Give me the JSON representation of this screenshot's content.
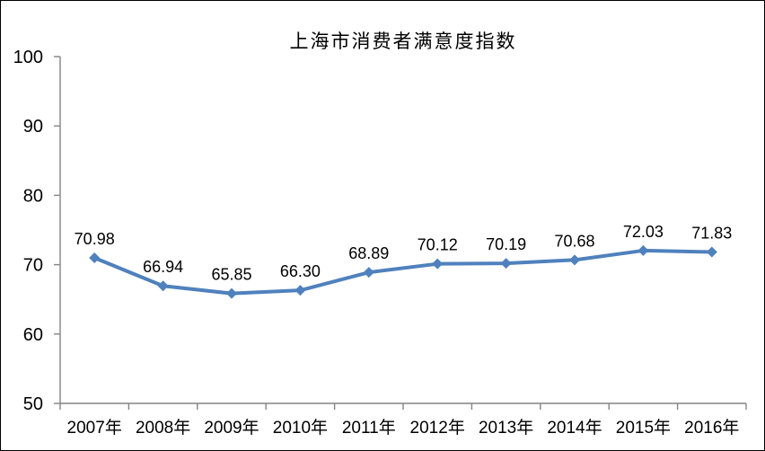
{
  "chart_data": {
    "type": "line",
    "title": "上海市消费者满意度指数",
    "categories": [
      "2007年",
      "2008年",
      "2009年",
      "2010年",
      "2011年",
      "2012年",
      "2013年",
      "2014年",
      "2015年",
      "2016年"
    ],
    "series": [
      {
        "name": "上海市消费者满意度指数",
        "values": [
          70.98,
          66.94,
          65.85,
          66.3,
          68.89,
          70.12,
          70.19,
          70.68,
          72.03,
          71.83
        ],
        "data_labels": [
          "70.98",
          "66.94",
          "65.85",
          "66.30",
          "68.89",
          "70.12",
          "70.19",
          "70.68",
          "72.03",
          "71.83"
        ]
      }
    ],
    "xlabel": "",
    "ylabel": "",
    "ylim": [
      50,
      100
    ],
    "y_ticks": [
      50,
      60,
      70,
      80,
      90,
      100
    ],
    "grid": "off",
    "legend": "none",
    "marker": "diamond",
    "colors": {
      "series": "#4F81BD",
      "axis": "#848484",
      "text": "#000000",
      "background": "#FFFFFF",
      "border": "#000000"
    }
  }
}
